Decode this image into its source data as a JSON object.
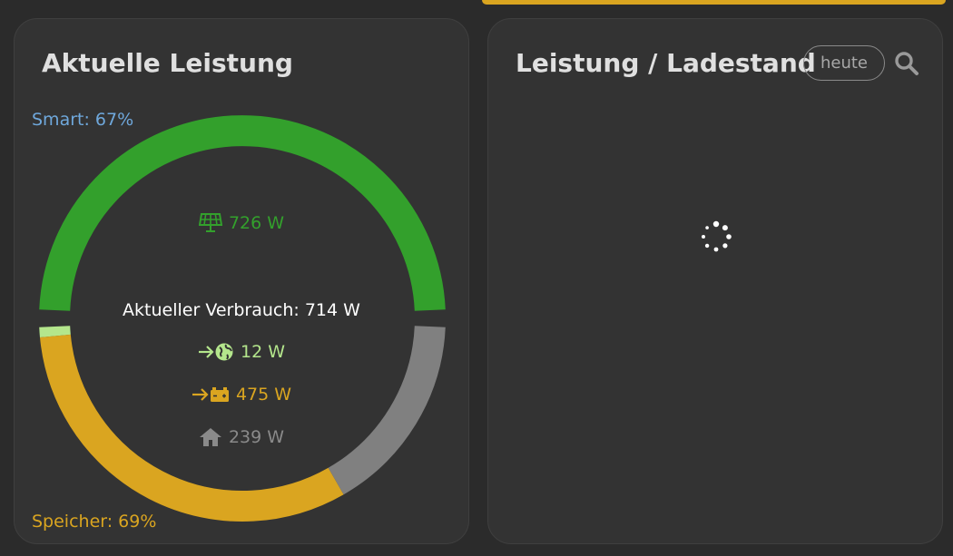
{
  "left_card": {
    "title": "Aktuelle Leistung",
    "smart_label": "Smart: 67%",
    "speicher_label": "Speicher: 69%",
    "solar_value": "726 W",
    "verbrauch_text": "Aktueller Verbrauch: 714 W",
    "grid_value": "12 W",
    "battery_value": "475 W",
    "home_value": "239 W"
  },
  "right_card": {
    "title": "Leistung / Ladestand",
    "range_button": "heute"
  },
  "colors": {
    "accent": "#daa520",
    "solar": "#33a02c",
    "grid": "#b4e68c",
    "battery": "#daa520",
    "home": "#808080",
    "smart": "#6fa8dc",
    "card_bg": "#333333",
    "page_bg": "#2b2b2b"
  },
  "icons": {
    "solar": "solar-panel-icon",
    "grid": "grid-import-icon",
    "battery": "battery-charge-icon",
    "home": "home-icon",
    "search": "search-icon",
    "loading": "loading-spinner-icon"
  },
  "gauge": {
    "production": {
      "solar_w": 726
    },
    "consumption": {
      "grid_w": 12,
      "battery_w": 475,
      "home_w": 239
    }
  }
}
